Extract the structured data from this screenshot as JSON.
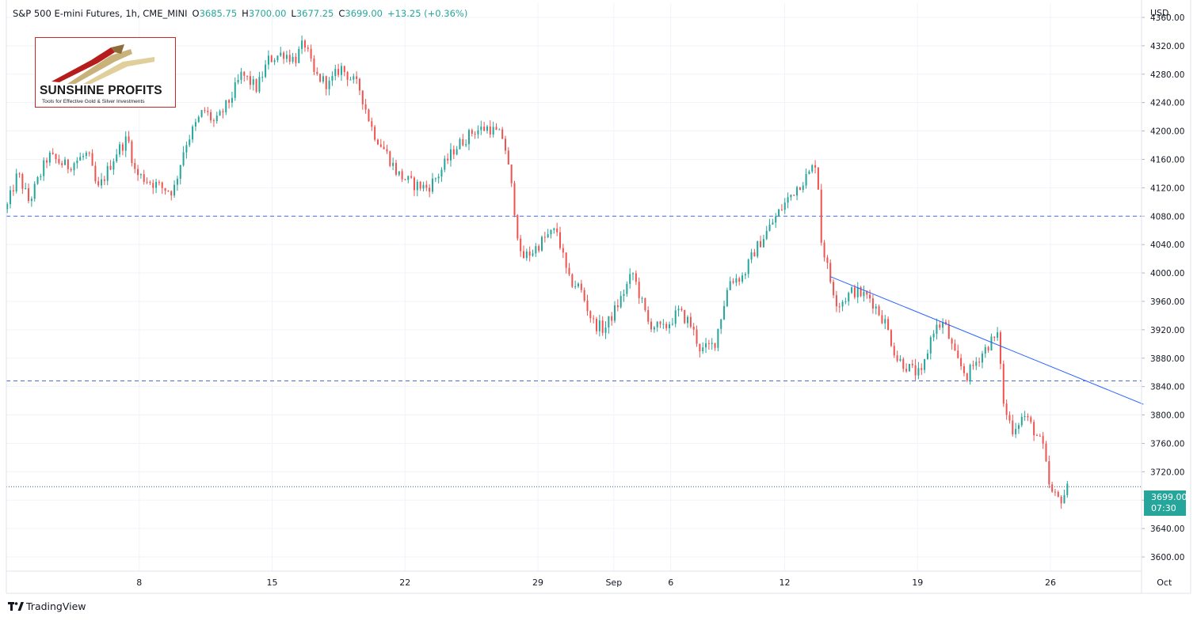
{
  "header": {
    "symbol": "S&P 500 E-mini Futures, 1h, CME_MINI",
    "open_label": "O",
    "open": "3685.75",
    "high_label": "H",
    "high": "3700.00",
    "low_label": "L",
    "low": "3677.25",
    "close_label": "C",
    "close": "3699.00",
    "change": "+13.25 (+0.36%)"
  },
  "currency": "USD",
  "price_tag": {
    "price": "3699.00",
    "countdown": "07:30"
  },
  "logo": {
    "name": "SUNSHINE PROFITS",
    "tagline": "Tools for Effective Gold & Silver Investments"
  },
  "footer": {
    "brand": "TradingView",
    "logo_icon": "tradingview-logo-icon"
  },
  "colors": {
    "up": "#26a69a",
    "down": "#ef5350",
    "support_line": "#4a6bd8",
    "trend_line": "#2962ff",
    "price_tag": "#26a69a",
    "logo_border": "#c62828"
  },
  "chart_data": {
    "type": "candlestick",
    "title": "S&P 500 E-mini Futures, 1h, CME_MINI",
    "ylim": [
      3580,
      4380
    ],
    "yticks": [
      3600,
      3640,
      3680,
      3720,
      3760,
      3800,
      3840,
      3880,
      3920,
      3960,
      4000,
      4040,
      4080,
      4120,
      4160,
      4200,
      4240,
      4280,
      4320,
      4360
    ],
    "xlim": [
      0,
      59.8
    ],
    "xticks": [
      {
        "label": "8",
        "x": 7
      },
      {
        "label": "15",
        "x": 14
      },
      {
        "label": "22",
        "x": 21
      },
      {
        "label": "29",
        "x": 28
      },
      {
        "label": "Sep",
        "x": 32
      },
      {
        "label": "6",
        "x": 35
      },
      {
        "label": "12",
        "x": 41
      },
      {
        "label": "19",
        "x": 48
      },
      {
        "label": "26",
        "x": 55
      },
      {
        "label": "Oct",
        "x": 61
      }
    ],
    "horizontal_lines": [
      {
        "name": "upper support",
        "value": 4080,
        "style": "dashed"
      },
      {
        "name": "lower support",
        "value": 3848,
        "style": "dashed"
      },
      {
        "name": "last price",
        "value": 3699,
        "style": "dotted"
      }
    ],
    "trend_line": {
      "x1": 43.4,
      "y1": 3995,
      "x2": 59.9,
      "y2": 3815
    },
    "price_path": [
      [
        0.0,
        4090
      ],
      [
        0.6,
        4140
      ],
      [
        1.2,
        4100
      ],
      [
        2.2,
        4165
      ],
      [
        3.2,
        4150
      ],
      [
        4.3,
        4168
      ],
      [
        4.8,
        4115
      ],
      [
        5.8,
        4170
      ],
      [
        6.4,
        4190
      ],
      [
        6.8,
        4140
      ],
      [
        7.5,
        4130
      ],
      [
        8.2,
        4120
      ],
      [
        8.8,
        4115
      ],
      [
        9.4,
        4180
      ],
      [
        10.4,
        4230
      ],
      [
        11.0,
        4210
      ],
      [
        11.8,
        4245
      ],
      [
        12.4,
        4280
      ],
      [
        13.2,
        4260
      ],
      [
        13.8,
        4300
      ],
      [
        14.6,
        4310
      ],
      [
        15.2,
        4300
      ],
      [
        15.7,
        4325
      ],
      [
        16.2,
        4280
      ],
      [
        17.0,
        4265
      ],
      [
        17.6,
        4290
      ],
      [
        18.6,
        4260
      ],
      [
        19.3,
        4200
      ],
      [
        20.0,
        4170
      ],
      [
        20.6,
        4140
      ],
      [
        21.4,
        4125
      ],
      [
        22.2,
        4120
      ],
      [
        22.8,
        4140
      ],
      [
        23.6,
        4175
      ],
      [
        24.6,
        4200
      ],
      [
        25.4,
        4205
      ],
      [
        26.2,
        4190
      ],
      [
        26.7,
        4105
      ],
      [
        27.1,
        4020
      ],
      [
        27.7,
        4030
      ],
      [
        28.4,
        4050
      ],
      [
        29.0,
        4060
      ],
      [
        29.6,
        3990
      ],
      [
        30.2,
        3980
      ],
      [
        30.9,
        3930
      ],
      [
        31.5,
        3920
      ],
      [
        32.3,
        3960
      ],
      [
        33.0,
        4000
      ],
      [
        33.8,
        3930
      ],
      [
        34.6,
        3920
      ],
      [
        35.4,
        3945
      ],
      [
        36.0,
        3930
      ],
      [
        36.6,
        3890
      ],
      [
        37.3,
        3900
      ],
      [
        38.1,
        3990
      ],
      [
        38.8,
        3995
      ],
      [
        39.4,
        4030
      ],
      [
        40.1,
        4060
      ],
      [
        40.8,
        4090
      ],
      [
        41.6,
        4120
      ],
      [
        42.3,
        4140
      ],
      [
        42.7,
        4160
      ],
      [
        42.9,
        4050
      ],
      [
        43.4,
        3990
      ],
      [
        43.8,
        3955
      ],
      [
        44.6,
        3975
      ],
      [
        45.5,
        3965
      ],
      [
        46.3,
        3930
      ],
      [
        46.9,
        3880
      ],
      [
        47.6,
        3865
      ],
      [
        48.2,
        3855
      ],
      [
        48.8,
        3920
      ],
      [
        49.4,
        3930
      ],
      [
        50.0,
        3880
      ],
      [
        50.6,
        3855
      ],
      [
        51.2,
        3880
      ],
      [
        51.9,
        3905
      ],
      [
        52.3,
        3910
      ],
      [
        52.5,
        3815
      ],
      [
        53.0,
        3780
      ],
      [
        53.6,
        3800
      ],
      [
        54.1,
        3780
      ],
      [
        54.6,
        3755
      ],
      [
        55.0,
        3690
      ],
      [
        55.5,
        3680
      ],
      [
        56.0,
        3700
      ]
    ]
  }
}
